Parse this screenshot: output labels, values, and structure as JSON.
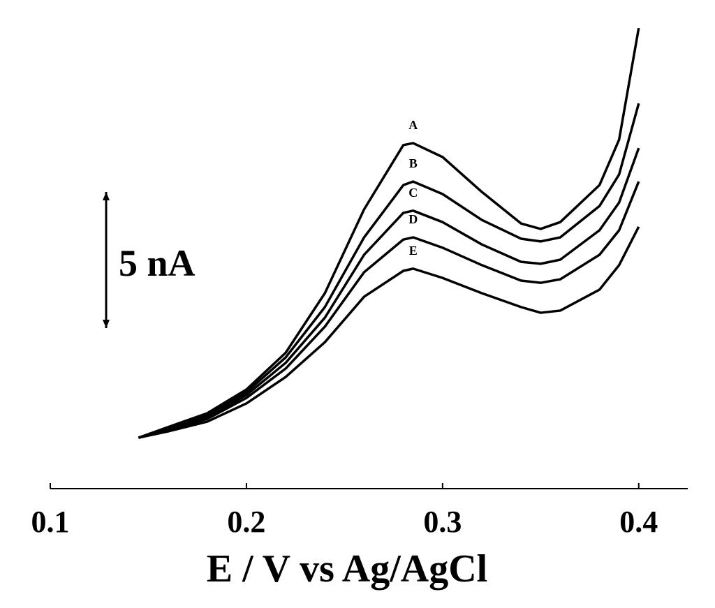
{
  "chart_data": {
    "type": "line",
    "xlabel": "E / V vs Ag/AgCl",
    "x": [
      0.145,
      0.16,
      0.18,
      0.2,
      0.22,
      0.24,
      0.26,
      0.28,
      0.285,
      0.3,
      0.32,
      0.34,
      0.35,
      0.36,
      0.38,
      0.39,
      0.4
    ],
    "series": [
      {
        "name": "A",
        "color": "#000000",
        "values": [
          1.87,
          2.26,
          2.77,
          3.64,
          4.99,
          7.18,
          10.26,
          12.62,
          12.69,
          12.18,
          10.9,
          9.74,
          9.54,
          9.79,
          11.15,
          12.82,
          16.92
        ]
      },
      {
        "name": "B",
        "color": "#000000",
        "values": [
          1.87,
          2.23,
          2.69,
          3.54,
          4.82,
          6.67,
          9.23,
          11.15,
          11.28,
          10.82,
          9.87,
          9.18,
          9.08,
          9.23,
          10.38,
          11.54,
          14.15
        ]
      },
      {
        "name": "C",
        "color": "#000000",
        "values": [
          1.87,
          2.18,
          2.62,
          3.44,
          4.62,
          6.28,
          8.59,
          10.13,
          10.21,
          9.79,
          8.97,
          8.33,
          8.26,
          8.41,
          9.49,
          10.51,
          12.51
        ]
      },
      {
        "name": "D",
        "color": "#000000",
        "values": [
          1.87,
          2.15,
          2.56,
          3.33,
          4.41,
          5.95,
          7.95,
          9.15,
          9.23,
          8.85,
          8.21,
          7.64,
          7.56,
          7.69,
          8.59,
          9.49,
          11.28
        ]
      },
      {
        "name": "E",
        "color": "#000000",
        "values": [
          1.87,
          2.1,
          2.46,
          3.13,
          4.1,
          5.38,
          7.05,
          8.0,
          8.08,
          7.74,
          7.18,
          6.67,
          6.46,
          6.54,
          7.31,
          8.21,
          9.62
        ]
      }
    ],
    "xlim": [
      0.1,
      0.425
    ],
    "xticks": [
      0.1,
      0.2,
      0.3,
      0.4
    ],
    "ylim": [
      0,
      17.5
    ],
    "scale_bar": {
      "value": 5,
      "label": "5 nA"
    }
  }
}
